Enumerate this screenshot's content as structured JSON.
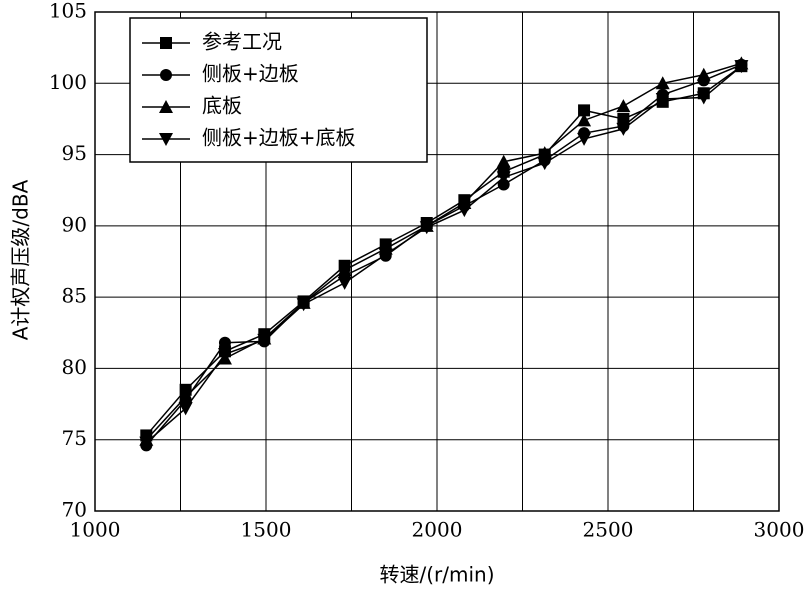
{
  "chart_data": {
    "type": "line",
    "x_label": "转速/(r/min)",
    "y_label": "A计权声压级/dBA",
    "x": [
      1150,
      1265,
      1380,
      1495,
      1610,
      1730,
      1850,
      1970,
      2080,
      2195,
      2315,
      2430,
      2545,
      2660,
      2780,
      2890
    ],
    "series": [
      {
        "name": "参考工况",
        "color": "#000000",
        "marker": "square",
        "values": [
          75.3,
          78.5,
          81.2,
          82.4,
          84.7,
          87.2,
          88.7,
          90.2,
          91.8,
          93.8,
          95.0,
          98.1,
          97.5,
          98.7,
          99.3,
          101.2
        ]
      },
      {
        "name": "侧板+边板",
        "color": "#000000",
        "marker": "circle",
        "values": [
          74.6,
          77.8,
          81.8,
          81.9,
          84.6,
          86.5,
          87.9,
          90.0,
          91.4,
          92.9,
          94.6,
          96.5,
          97.0,
          99.2,
          100.2,
          101.3
        ]
      },
      {
        "name": "底板",
        "color": "#000000",
        "marker": "triangle-up",
        "values": [
          75.0,
          78.0,
          80.7,
          82.1,
          84.6,
          86.9,
          88.4,
          90.0,
          91.6,
          94.5,
          95.1,
          97.4,
          98.4,
          100.0,
          100.6,
          101.4
        ]
      },
      {
        "name": "侧板+边板+底板",
        "color": "#000000",
        "marker": "triangle-down",
        "values": [
          74.8,
          77.2,
          81.0,
          82.0,
          84.5,
          86.0,
          88.0,
          89.9,
          91.1,
          93.4,
          94.4,
          96.1,
          96.8,
          98.9,
          99.0,
          101.2
        ]
      }
    ],
    "xlim": [
      1000,
      3000
    ],
    "xticks": [
      1000,
      1500,
      2000,
      2500,
      3000
    ],
    "x_minor_grid": [
      1250,
      1750,
      2250,
      2750
    ],
    "ylim": [
      70,
      105
    ],
    "yticks": [
      70,
      75,
      80,
      85,
      90,
      95,
      100,
      105
    ],
    "grid": true,
    "legend": "upper-left"
  }
}
